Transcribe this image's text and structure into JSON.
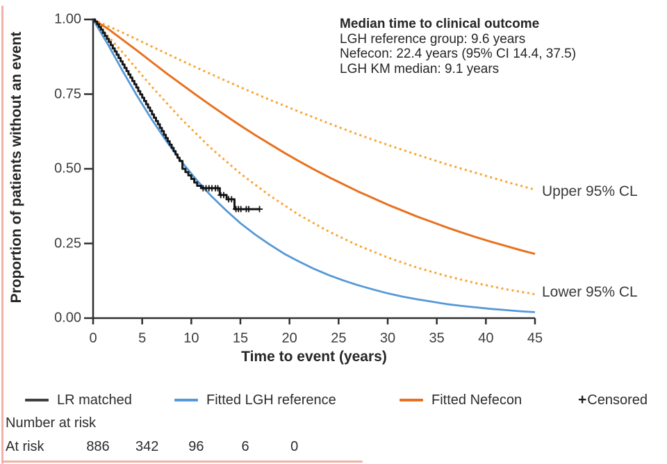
{
  "chart_data": {
    "type": "line",
    "title": "",
    "xlabel": "Time to event (years)",
    "ylabel": "Proportion of patients without an event",
    "xlim": [
      0,
      45
    ],
    "ylim": [
      0.0,
      1.0
    ],
    "grid": false,
    "x_ticks": {
      "values": [
        0,
        5,
        10,
        15,
        20,
        25,
        30,
        35,
        40,
        45
      ],
      "labels": [
        "0",
        "5",
        "10",
        "15",
        "20",
        "25",
        "30",
        "35",
        "40",
        "45"
      ]
    },
    "y_ticks": {
      "values": [
        1.0,
        0.75,
        0.5,
        0.25,
        0.0
      ],
      "labels": [
        "1.00",
        "0.75",
        "0.50",
        "0.25",
        "0.00"
      ]
    },
    "annotation": {
      "title": "Median time to clinical outcome",
      "lines": [
        "LGH reference group: 9.6 years",
        "Nefecon: 22.4 years (95% CI 14.4, 37.5)",
        "LGH KM median: 9.1 years"
      ]
    },
    "curve_labels": {
      "upper": "Upper 95% CL",
      "lower": "Lower 95% CL"
    },
    "legend": [
      {
        "label": "LR matched",
        "color": "#3f3f3f",
        "kind": "line"
      },
      {
        "label": "Fitted LGH reference",
        "color": "#5599d6",
        "kind": "line"
      },
      {
        "label": "Fitted Nefecon",
        "color": "#e8711f",
        "kind": "line"
      },
      {
        "label": "Censored",
        "marker": "+",
        "kind": "marker"
      }
    ],
    "series": [
      {
        "name": "Upper 95% CL",
        "kind": "dotted",
        "color": "#faa432",
        "width": 3,
        "points": [
          [
            0,
            1
          ],
          [
            3,
            0.956
          ],
          [
            6,
            0.909
          ],
          [
            9,
            0.862
          ],
          [
            12,
            0.817
          ],
          [
            15,
            0.773
          ],
          [
            18,
            0.731
          ],
          [
            21,
            0.691
          ],
          [
            24,
            0.652
          ],
          [
            27,
            0.615
          ],
          [
            30,
            0.58
          ],
          [
            33,
            0.547
          ],
          [
            36,
            0.515
          ],
          [
            39,
            0.486
          ],
          [
            42,
            0.457
          ],
          [
            45,
            0.43
          ]
        ]
      },
      {
        "name": "Lower 95% CL",
        "kind": "dotted",
        "color": "#faa432",
        "width": 3,
        "points": [
          [
            0,
            1
          ],
          [
            3,
            0.89
          ],
          [
            6,
            0.774
          ],
          [
            9,
            0.666
          ],
          [
            12,
            0.569
          ],
          [
            15,
            0.484
          ],
          [
            18,
            0.41
          ],
          [
            21,
            0.345
          ],
          [
            24,
            0.29
          ],
          [
            27,
            0.243
          ],
          [
            30,
            0.203
          ],
          [
            33,
            0.169
          ],
          [
            36,
            0.141
          ],
          [
            39,
            0.117
          ],
          [
            42,
            0.097
          ],
          [
            45,
            0.08
          ]
        ]
      },
      {
        "name": "Fitted Nefecon",
        "kind": "solid",
        "color": "#e8711f",
        "width": 3,
        "points": [
          [
            0,
            1
          ],
          [
            1.5,
            0.969
          ],
          [
            3,
            0.932
          ],
          [
            4.5,
            0.895
          ],
          [
            6,
            0.857
          ],
          [
            7.5,
            0.819
          ],
          [
            9,
            0.783
          ],
          [
            10.5,
            0.747
          ],
          [
            12,
            0.712
          ],
          [
            13.5,
            0.678
          ],
          [
            15,
            0.645
          ],
          [
            16.5,
            0.613
          ],
          [
            18,
            0.583
          ],
          [
            19.5,
            0.553
          ],
          [
            21,
            0.525
          ],
          [
            22.5,
            0.498
          ],
          [
            24,
            0.472
          ],
          [
            25.5,
            0.448
          ],
          [
            27,
            0.424
          ],
          [
            28.5,
            0.402
          ],
          [
            30,
            0.38
          ],
          [
            31.5,
            0.36
          ],
          [
            33,
            0.34
          ],
          [
            34.5,
            0.322
          ],
          [
            36,
            0.304
          ],
          [
            37.5,
            0.287
          ],
          [
            39,
            0.271
          ],
          [
            40.5,
            0.256
          ],
          [
            42,
            0.242
          ],
          [
            43.5,
            0.228
          ],
          [
            45,
            0.215
          ]
        ]
      },
      {
        "name": "Fitted LGH reference",
        "kind": "solid",
        "color": "#5599d6",
        "width": 2.8,
        "points": [
          [
            0,
            1
          ],
          [
            1.5,
            0.917
          ],
          [
            3,
            0.828
          ],
          [
            4.5,
            0.743
          ],
          [
            6,
            0.664
          ],
          [
            7.5,
            0.591
          ],
          [
            9,
            0.524
          ],
          [
            10.5,
            0.464
          ],
          [
            12,
            0.41
          ],
          [
            13.5,
            0.362
          ],
          [
            15,
            0.318
          ],
          [
            16.5,
            0.28
          ],
          [
            18,
            0.246
          ],
          [
            19.5,
            0.215
          ],
          [
            21,
            0.189
          ],
          [
            22.5,
            0.165
          ],
          [
            24,
            0.144
          ],
          [
            25.5,
            0.126
          ],
          [
            27,
            0.11
          ],
          [
            28.5,
            0.096
          ],
          [
            30,
            0.083
          ],
          [
            31.5,
            0.072
          ],
          [
            33,
            0.063
          ],
          [
            34.5,
            0.055
          ],
          [
            36,
            0.047
          ],
          [
            37.5,
            0.041
          ],
          [
            39,
            0.036
          ],
          [
            40.5,
            0.031
          ],
          [
            42,
            0.027
          ],
          [
            43.5,
            0.023
          ],
          [
            45,
            0.02
          ]
        ]
      },
      {
        "name": "LR matched",
        "kind": "step",
        "color": "#161616",
        "width": 3,
        "points": [
          [
            0,
            1
          ],
          [
            0.2,
            0.993
          ],
          [
            0.4,
            0.984
          ],
          [
            0.6,
            0.975
          ],
          [
            0.8,
            0.966
          ],
          [
            1,
            0.955
          ],
          [
            1.2,
            0.945
          ],
          [
            1.4,
            0.935
          ],
          [
            1.6,
            0.925
          ],
          [
            1.8,
            0.914
          ],
          [
            2,
            0.903
          ],
          [
            2.2,
            0.893
          ],
          [
            2.4,
            0.882
          ],
          [
            2.6,
            0.871
          ],
          [
            2.8,
            0.86
          ],
          [
            3,
            0.849
          ],
          [
            3.2,
            0.838
          ],
          [
            3.4,
            0.827
          ],
          [
            3.6,
            0.816
          ],
          [
            3.8,
            0.805
          ],
          [
            4,
            0.794
          ],
          [
            4.2,
            0.783
          ],
          [
            4.4,
            0.772
          ],
          [
            4.6,
            0.76
          ],
          [
            4.8,
            0.749
          ],
          [
            5,
            0.738
          ],
          [
            5.2,
            0.727
          ],
          [
            5.4,
            0.716
          ],
          [
            5.6,
            0.705
          ],
          [
            5.8,
            0.694
          ],
          [
            6,
            0.682
          ],
          [
            6.2,
            0.671
          ],
          [
            6.4,
            0.66
          ],
          [
            6.6,
            0.649
          ],
          [
            6.8,
            0.637
          ],
          [
            7,
            0.626
          ],
          [
            7.2,
            0.614
          ],
          [
            7.4,
            0.603
          ],
          [
            7.6,
            0.592
          ],
          [
            7.8,
            0.581
          ],
          [
            8,
            0.57
          ],
          [
            8.2,
            0.559
          ],
          [
            8.4,
            0.548
          ],
          [
            8.6,
            0.537
          ],
          [
            8.8,
            0.526
          ],
          [
            9.1,
            0.5
          ],
          [
            9.4,
            0.489
          ],
          [
            9.7,
            0.478
          ],
          [
            10,
            0.466
          ],
          [
            10.3,
            0.454
          ],
          [
            10.6,
            0.443
          ],
          [
            11,
            0.435
          ],
          [
            12.9,
            0.412
          ],
          [
            13.6,
            0.398
          ],
          [
            14.4,
            0.365
          ],
          [
            17,
            0.365
          ]
        ]
      }
    ],
    "censored": {
      "marker": "+",
      "points": [
        [
          11.2,
          0.435
        ],
        [
          11.5,
          0.435
        ],
        [
          11.8,
          0.435
        ],
        [
          12.1,
          0.435
        ],
        [
          12.45,
          0.435
        ],
        [
          12.7,
          0.435
        ],
        [
          13,
          0.412
        ],
        [
          13.3,
          0.412
        ],
        [
          13.8,
          0.398
        ],
        [
          14.1,
          0.398
        ],
        [
          14.55,
          0.365
        ],
        [
          14.8,
          0.365
        ],
        [
          15.05,
          0.365
        ],
        [
          15.6,
          0.365
        ],
        [
          15.85,
          0.365
        ],
        [
          16.95,
          0.365
        ]
      ]
    },
    "at_risk": {
      "header": "Number at risk",
      "row_label": "At risk",
      "times": [
        0,
        5,
        10,
        15,
        20
      ],
      "values": [
        "886",
        "342",
        "96",
        "6",
        "0"
      ]
    }
  },
  "colors": {
    "axis": "#2f2f2f",
    "text": "#2b2b2b",
    "km_black": "#161616",
    "lgh_blue": "#5599d6",
    "nefecon_orange": "#e8711f",
    "ci_dotted_orange": "#faa432",
    "censor_mark": "#111111",
    "page_edge_pink": "#f1b1a8"
  }
}
